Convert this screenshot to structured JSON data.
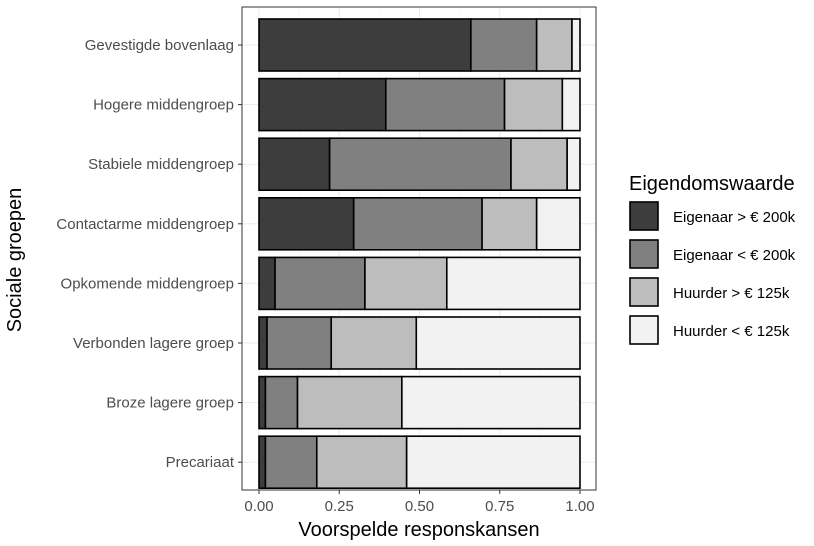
{
  "chart_data": {
    "type": "bar",
    "orientation": "horizontal",
    "stacked": true,
    "xlabel": "Voorspelde responskansen",
    "ylabel": "Sociale groepen",
    "xlim": [
      0,
      1
    ],
    "xticks": [
      "0.00",
      "0.25",
      "0.50",
      "0.75",
      "1.00"
    ],
    "xtick_values": [
      0,
      0.25,
      0.5,
      0.75,
      1.0
    ],
    "grid": true,
    "legend_position": "right",
    "legend_title": "Eigendomswaarde",
    "categories": [
      "Gevestigde bovenlaag",
      "Hogere middengroep",
      "Stabiele middengroep",
      "Contactarme middengroep",
      "Opkomende middengroep",
      "Verbonden lagere groep",
      "Broze lagere groep",
      "Precariaat"
    ],
    "series": [
      {
        "name": "Eigenaar > € 200k",
        "color": "#3d3d3d",
        "values": [
          0.66,
          0.395,
          0.22,
          0.295,
          0.05,
          0.025,
          0.02,
          0.02
        ]
      },
      {
        "name": "Eigenaar < € 200k",
        "color": "#808080",
        "values": [
          0.205,
          0.37,
          0.565,
          0.4,
          0.28,
          0.2,
          0.1,
          0.16
        ]
      },
      {
        "name": "Huurder > € 125k",
        "color": "#bdbdbd",
        "values": [
          0.11,
          0.18,
          0.175,
          0.17,
          0.255,
          0.265,
          0.325,
          0.28
        ]
      },
      {
        "name": "Huurder < € 125k",
        "color": "#f2f2f2",
        "values": [
          0.025,
          0.055,
          0.04,
          0.135,
          0.415,
          0.51,
          0.555,
          0.54
        ]
      }
    ]
  }
}
